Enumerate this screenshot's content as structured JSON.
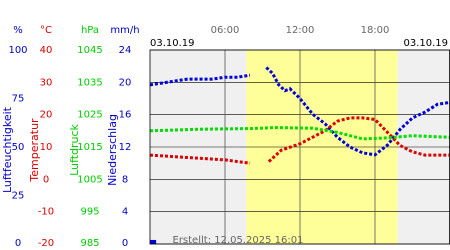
{
  "chart_data": {
    "type": "line",
    "date_left": "03.10.19",
    "date_right": "03.10.19",
    "footer": "Erstellt: 12.05.2025 16:01",
    "xlim": [
      0,
      24
    ],
    "xticks": [
      {
        "value": 6,
        "label": "06:00"
      },
      {
        "value": 12,
        "label": "12:00"
      },
      {
        "value": 18,
        "label": "18:00"
      }
    ],
    "daylight": [
      7.7,
      19.8
    ],
    "axes": [
      {
        "unit": "%",
        "label": "Luftfeuchtigkeit",
        "color": "#0000cc",
        "lim": [
          0,
          100
        ],
        "ticks": [
          0,
          25,
          50,
          75,
          100
        ]
      },
      {
        "unit": "°C",
        "label": "Temperatur",
        "color": "#dd0000",
        "lim": [
          -20,
          40
        ],
        "ticks": [
          -20,
          -10,
          0,
          10,
          20,
          30,
          40
        ]
      },
      {
        "unit": "hPa",
        "label": "Luftdruck",
        "color": "#00cc00",
        "lim": [
          985,
          1045
        ],
        "ticks": [
          985,
          995,
          1005,
          1015,
          1025,
          1035,
          1045
        ]
      },
      {
        "unit": "mm/h",
        "label": "Niederschlag",
        "color": "#0000cc",
        "lim": [
          0,
          24
        ],
        "ticks": [
          0,
          4,
          8,
          12,
          16,
          20,
          24
        ]
      }
    ],
    "series": [
      {
        "name": "Luftfeuchtigkeit",
        "axis": 0,
        "color": "#0000dd",
        "x": [
          0,
          1,
          2,
          3,
          4,
          5,
          6,
          7,
          8,
          8.7,
          9.3,
          9.8,
          10.3,
          10.8,
          11.2,
          12,
          13,
          14,
          15,
          16,
          17,
          18,
          19,
          20,
          21,
          22,
          23,
          24
        ],
        "values": [
          82,
          83,
          84,
          85,
          85,
          85,
          86,
          86,
          87,
          null,
          91,
          88,
          82,
          79,
          80,
          75,
          67,
          62,
          55,
          50,
          47,
          46,
          51,
          59,
          65,
          68,
          72,
          73
        ]
      },
      {
        "name": "Temperatur",
        "axis": 1,
        "color": "#dd0000",
        "x": [
          0,
          2,
          4,
          6,
          8,
          8.7,
          9.5,
          10.5,
          12,
          13,
          14,
          15,
          16,
          17,
          18,
          19,
          20,
          21,
          22,
          24
        ],
        "values": [
          7.5,
          7,
          6.5,
          6,
          5,
          null,
          5.5,
          9,
          11,
          13,
          15,
          18,
          19,
          19,
          18.5,
          14.5,
          10.5,
          8.5,
          7.5,
          7.5
        ]
      },
      {
        "name": "Luftdruck",
        "axis": 2,
        "color": "#00dd00",
        "x": [
          0,
          4,
          8,
          10,
          13,
          15,
          17,
          19,
          21,
          24
        ],
        "values": [
          1020,
          1020.5,
          1020.7,
          1021,
          1020.8,
          1019.5,
          1017.5,
          1017.8,
          1018.5,
          1018
        ]
      },
      {
        "name": "Niederschlag",
        "axis": 3,
        "color": "#0000dd",
        "bars": true,
        "x": [
          0.25
        ],
        "values": [
          0.5
        ]
      }
    ]
  }
}
